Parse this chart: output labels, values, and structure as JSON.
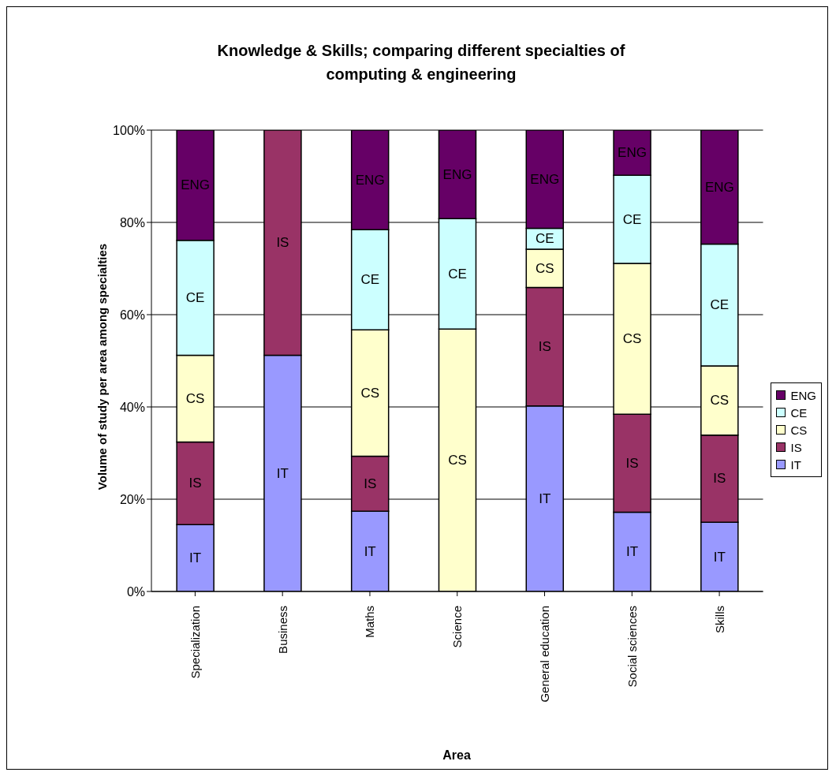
{
  "chart_data": {
    "type": "bar",
    "title": "Knowledge & Skills; comparing different specialties of computing & engineering",
    "xlabel": "Area",
    "ylabel": "Volume of study per area among specialties",
    "categories": [
      "Specialization",
      "Business",
      "Maths",
      "Science",
      "General education",
      "Social sciences",
      "Skills"
    ],
    "series": [
      {
        "name": "IT",
        "color": "#9999ff",
        "values": [
          14.5,
          51.2,
          17.4,
          0,
          40.2,
          17.2,
          15.0
        ]
      },
      {
        "name": "IS",
        "color": "#993366",
        "values": [
          17.9,
          48.8,
          11.9,
          0,
          25.7,
          21.2,
          18.9
        ]
      },
      {
        "name": "CS",
        "color": "#ffffcc",
        "values": [
          18.8,
          0,
          27.4,
          56.9,
          8.3,
          32.7,
          15.0
        ]
      },
      {
        "name": "CE",
        "color": "#ccffff",
        "values": [
          24.9,
          0,
          21.7,
          23.9,
          4.5,
          19.1,
          26.4
        ]
      },
      {
        "name": "ENG",
        "color": "#660066",
        "values": [
          23.9,
          0,
          21.6,
          19.2,
          21.3,
          9.8,
          24.7
        ]
      }
    ],
    "stacked": true,
    "ylim": [
      0,
      100
    ],
    "yticks": [
      {
        "value": 0,
        "label": "0%"
      },
      {
        "value": 20,
        "label": "20%"
      },
      {
        "value": 40,
        "label": "40%"
      },
      {
        "value": 60,
        "label": "60%"
      },
      {
        "value": 80,
        "label": "80%"
      },
      {
        "value": 100,
        "label": "100%"
      }
    ],
    "grid": "y",
    "legend": "right"
  }
}
